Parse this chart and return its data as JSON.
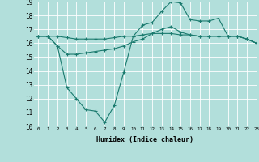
{
  "title": "",
  "xlabel": "Humidex (Indice chaleur)",
  "ylabel": "",
  "background_color": "#b2dfdb",
  "grid_color": "#ffffff",
  "line_color": "#1a7a6e",
  "xlim": [
    -0.5,
    23
  ],
  "ylim": [
    10,
    19
  ],
  "xticks": [
    0,
    1,
    2,
    3,
    4,
    5,
    6,
    7,
    8,
    9,
    10,
    11,
    12,
    13,
    14,
    15,
    16,
    17,
    18,
    19,
    20,
    21,
    22,
    23
  ],
  "yticks": [
    10,
    11,
    12,
    13,
    14,
    15,
    16,
    17,
    18,
    19
  ],
  "series": [
    {
      "x": [
        0,
        1,
        2,
        3,
        4,
        5,
        6,
        7,
        8,
        9,
        10,
        11,
        12,
        13,
        14,
        15,
        16,
        17,
        18,
        19,
        20,
        21,
        22,
        23
      ],
      "y": [
        16.5,
        16.5,
        16.5,
        16.4,
        16.3,
        16.3,
        16.3,
        16.3,
        16.4,
        16.5,
        16.5,
        16.6,
        16.7,
        16.7,
        16.7,
        16.6,
        16.6,
        16.5,
        16.5,
        16.5,
        16.5,
        16.5,
        16.3,
        16.0
      ]
    },
    {
      "x": [
        0,
        1,
        2,
        3,
        4,
        5,
        6,
        7,
        8,
        9,
        10,
        11,
        12,
        13,
        14,
        15,
        16,
        17,
        18,
        19,
        20,
        21,
        22,
        23
      ],
      "y": [
        16.5,
        16.5,
        15.8,
        15.2,
        15.2,
        15.3,
        15.4,
        15.5,
        15.6,
        15.8,
        16.1,
        16.3,
        16.7,
        17.0,
        17.2,
        16.8,
        16.6,
        16.5,
        16.5,
        16.5,
        16.5,
        16.5,
        16.3,
        16.0
      ]
    },
    {
      "x": [
        0,
        1,
        2,
        3,
        4,
        5,
        6,
        7,
        8,
        9,
        10,
        11,
        12,
        13,
        14,
        15,
        16,
        17,
        18,
        19,
        20,
        21,
        22,
        23
      ],
      "y": [
        16.5,
        16.5,
        15.8,
        12.8,
        12.0,
        11.2,
        11.1,
        10.3,
        11.5,
        13.9,
        16.5,
        17.3,
        17.5,
        18.3,
        19.0,
        18.9,
        17.7,
        17.6,
        17.6,
        17.8,
        16.5,
        16.5,
        16.3,
        16.0
      ]
    }
  ]
}
